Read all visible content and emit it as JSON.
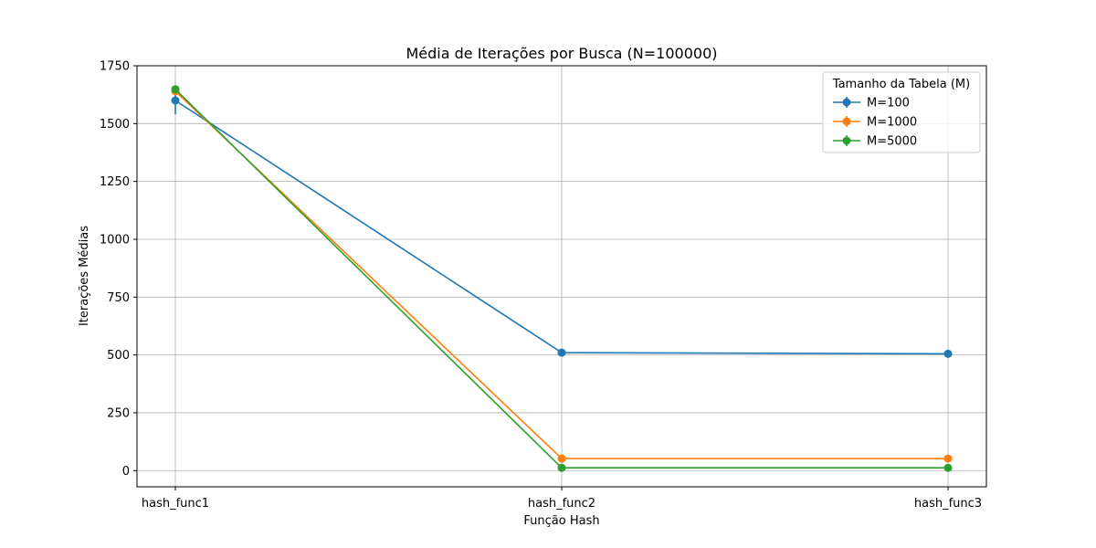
{
  "chart_data": {
    "type": "line",
    "title": "Média de Iterações por Busca (N=100000)",
    "xlabel": "Função Hash",
    "ylabel": "Iterações Médias",
    "categories": [
      "hash_func1",
      "hash_func2",
      "hash_func3"
    ],
    "ylim": [
      -70,
      1750
    ],
    "yticks": [
      0,
      250,
      500,
      750,
      1000,
      1250,
      1500,
      1750
    ],
    "grid": true,
    "legend": {
      "title": "Tamanho da Tabela (M)",
      "placement": "top-right"
    },
    "series": [
      {
        "name": "M=100",
        "color": "#1f77b4",
        "values": [
          1600,
          510,
          505
        ],
        "errors": [
          60,
          0,
          0
        ]
      },
      {
        "name": "M=1000",
        "color": "#ff7f0e",
        "values": [
          1640,
          52,
          52
        ],
        "errors": [
          10,
          0,
          0
        ]
      },
      {
        "name": "M=5000",
        "color": "#2ca02c",
        "values": [
          1648,
          12,
          12
        ],
        "errors": [
          10,
          0,
          0
        ]
      }
    ]
  }
}
